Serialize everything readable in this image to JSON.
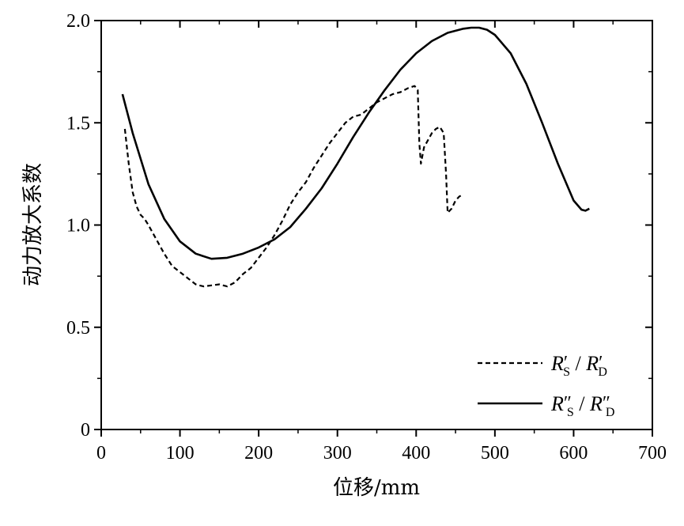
{
  "chart_data": {
    "type": "line",
    "title": "",
    "xlabel": "位移/mm",
    "ylabel": "动力放大系数",
    "xlim": [
      0,
      700
    ],
    "ylim": [
      0,
      2.0
    ],
    "x_ticks": [
      "0",
      "100",
      "200",
      "300",
      "400",
      "500",
      "600",
      "700"
    ],
    "y_ticks": [
      "0",
      "0.5",
      "1.0",
      "1.5",
      "2.0"
    ],
    "x_tick_values": [
      0,
      100,
      200,
      300,
      400,
      500,
      600,
      700
    ],
    "y_tick_values": [
      0,
      0.5,
      1.0,
      1.5,
      2.0
    ],
    "legend_position": "bottom-right",
    "series": [
      {
        "name": "R′S / R′D",
        "legend": {
          "r1": "R",
          "sub1": "S",
          "mid": " / ",
          "r2": "R",
          "sub2": "D",
          "prime": "′"
        },
        "style": "dashed",
        "x": [
          30,
          35,
          40,
          45,
          50,
          55,
          60,
          70,
          80,
          90,
          100,
          110,
          120,
          130,
          140,
          150,
          160,
          170,
          180,
          190,
          200,
          210,
          220,
          230,
          240,
          250,
          260,
          270,
          280,
          290,
          300,
          310,
          320,
          330,
          340,
          350,
          360,
          370,
          380,
          390,
          398,
          402,
          404,
          406,
          410,
          420,
          425,
          430,
          435,
          438,
          440,
          445,
          450,
          455,
          460
        ],
        "y": [
          1.47,
          1.3,
          1.16,
          1.09,
          1.05,
          1.03,
          1.0,
          0.93,
          0.86,
          0.8,
          0.77,
          0.74,
          0.71,
          0.7,
          0.705,
          0.71,
          0.7,
          0.72,
          0.76,
          0.79,
          0.84,
          0.89,
          0.95,
          1.02,
          1.1,
          1.16,
          1.21,
          1.28,
          1.34,
          1.4,
          1.45,
          1.5,
          1.53,
          1.54,
          1.57,
          1.6,
          1.62,
          1.64,
          1.65,
          1.67,
          1.68,
          1.66,
          1.4,
          1.3,
          1.38,
          1.45,
          1.47,
          1.48,
          1.45,
          1.25,
          1.06,
          1.08,
          1.12,
          1.14,
          1.15
        ]
      },
      {
        "name": "R″S / R″D",
        "legend": {
          "r1": "R",
          "sub1": "S",
          "mid": " / ",
          "r2": "R",
          "sub2": "D",
          "prime": "″"
        },
        "style": "solid",
        "x": [
          27,
          40,
          60,
          80,
          100,
          120,
          140,
          160,
          180,
          200,
          220,
          240,
          260,
          280,
          300,
          320,
          340,
          360,
          380,
          400,
          420,
          440,
          460,
          470,
          480,
          490,
          500,
          520,
          540,
          560,
          580,
          600,
          610,
          615,
          620
        ],
        "y": [
          1.64,
          1.45,
          1.2,
          1.03,
          0.92,
          0.86,
          0.835,
          0.84,
          0.86,
          0.89,
          0.93,
          0.99,
          1.08,
          1.18,
          1.3,
          1.43,
          1.55,
          1.66,
          1.76,
          1.84,
          1.9,
          1.94,
          1.96,
          1.965,
          1.965,
          1.955,
          1.93,
          1.84,
          1.69,
          1.5,
          1.3,
          1.12,
          1.075,
          1.07,
          1.08
        ]
      }
    ]
  }
}
